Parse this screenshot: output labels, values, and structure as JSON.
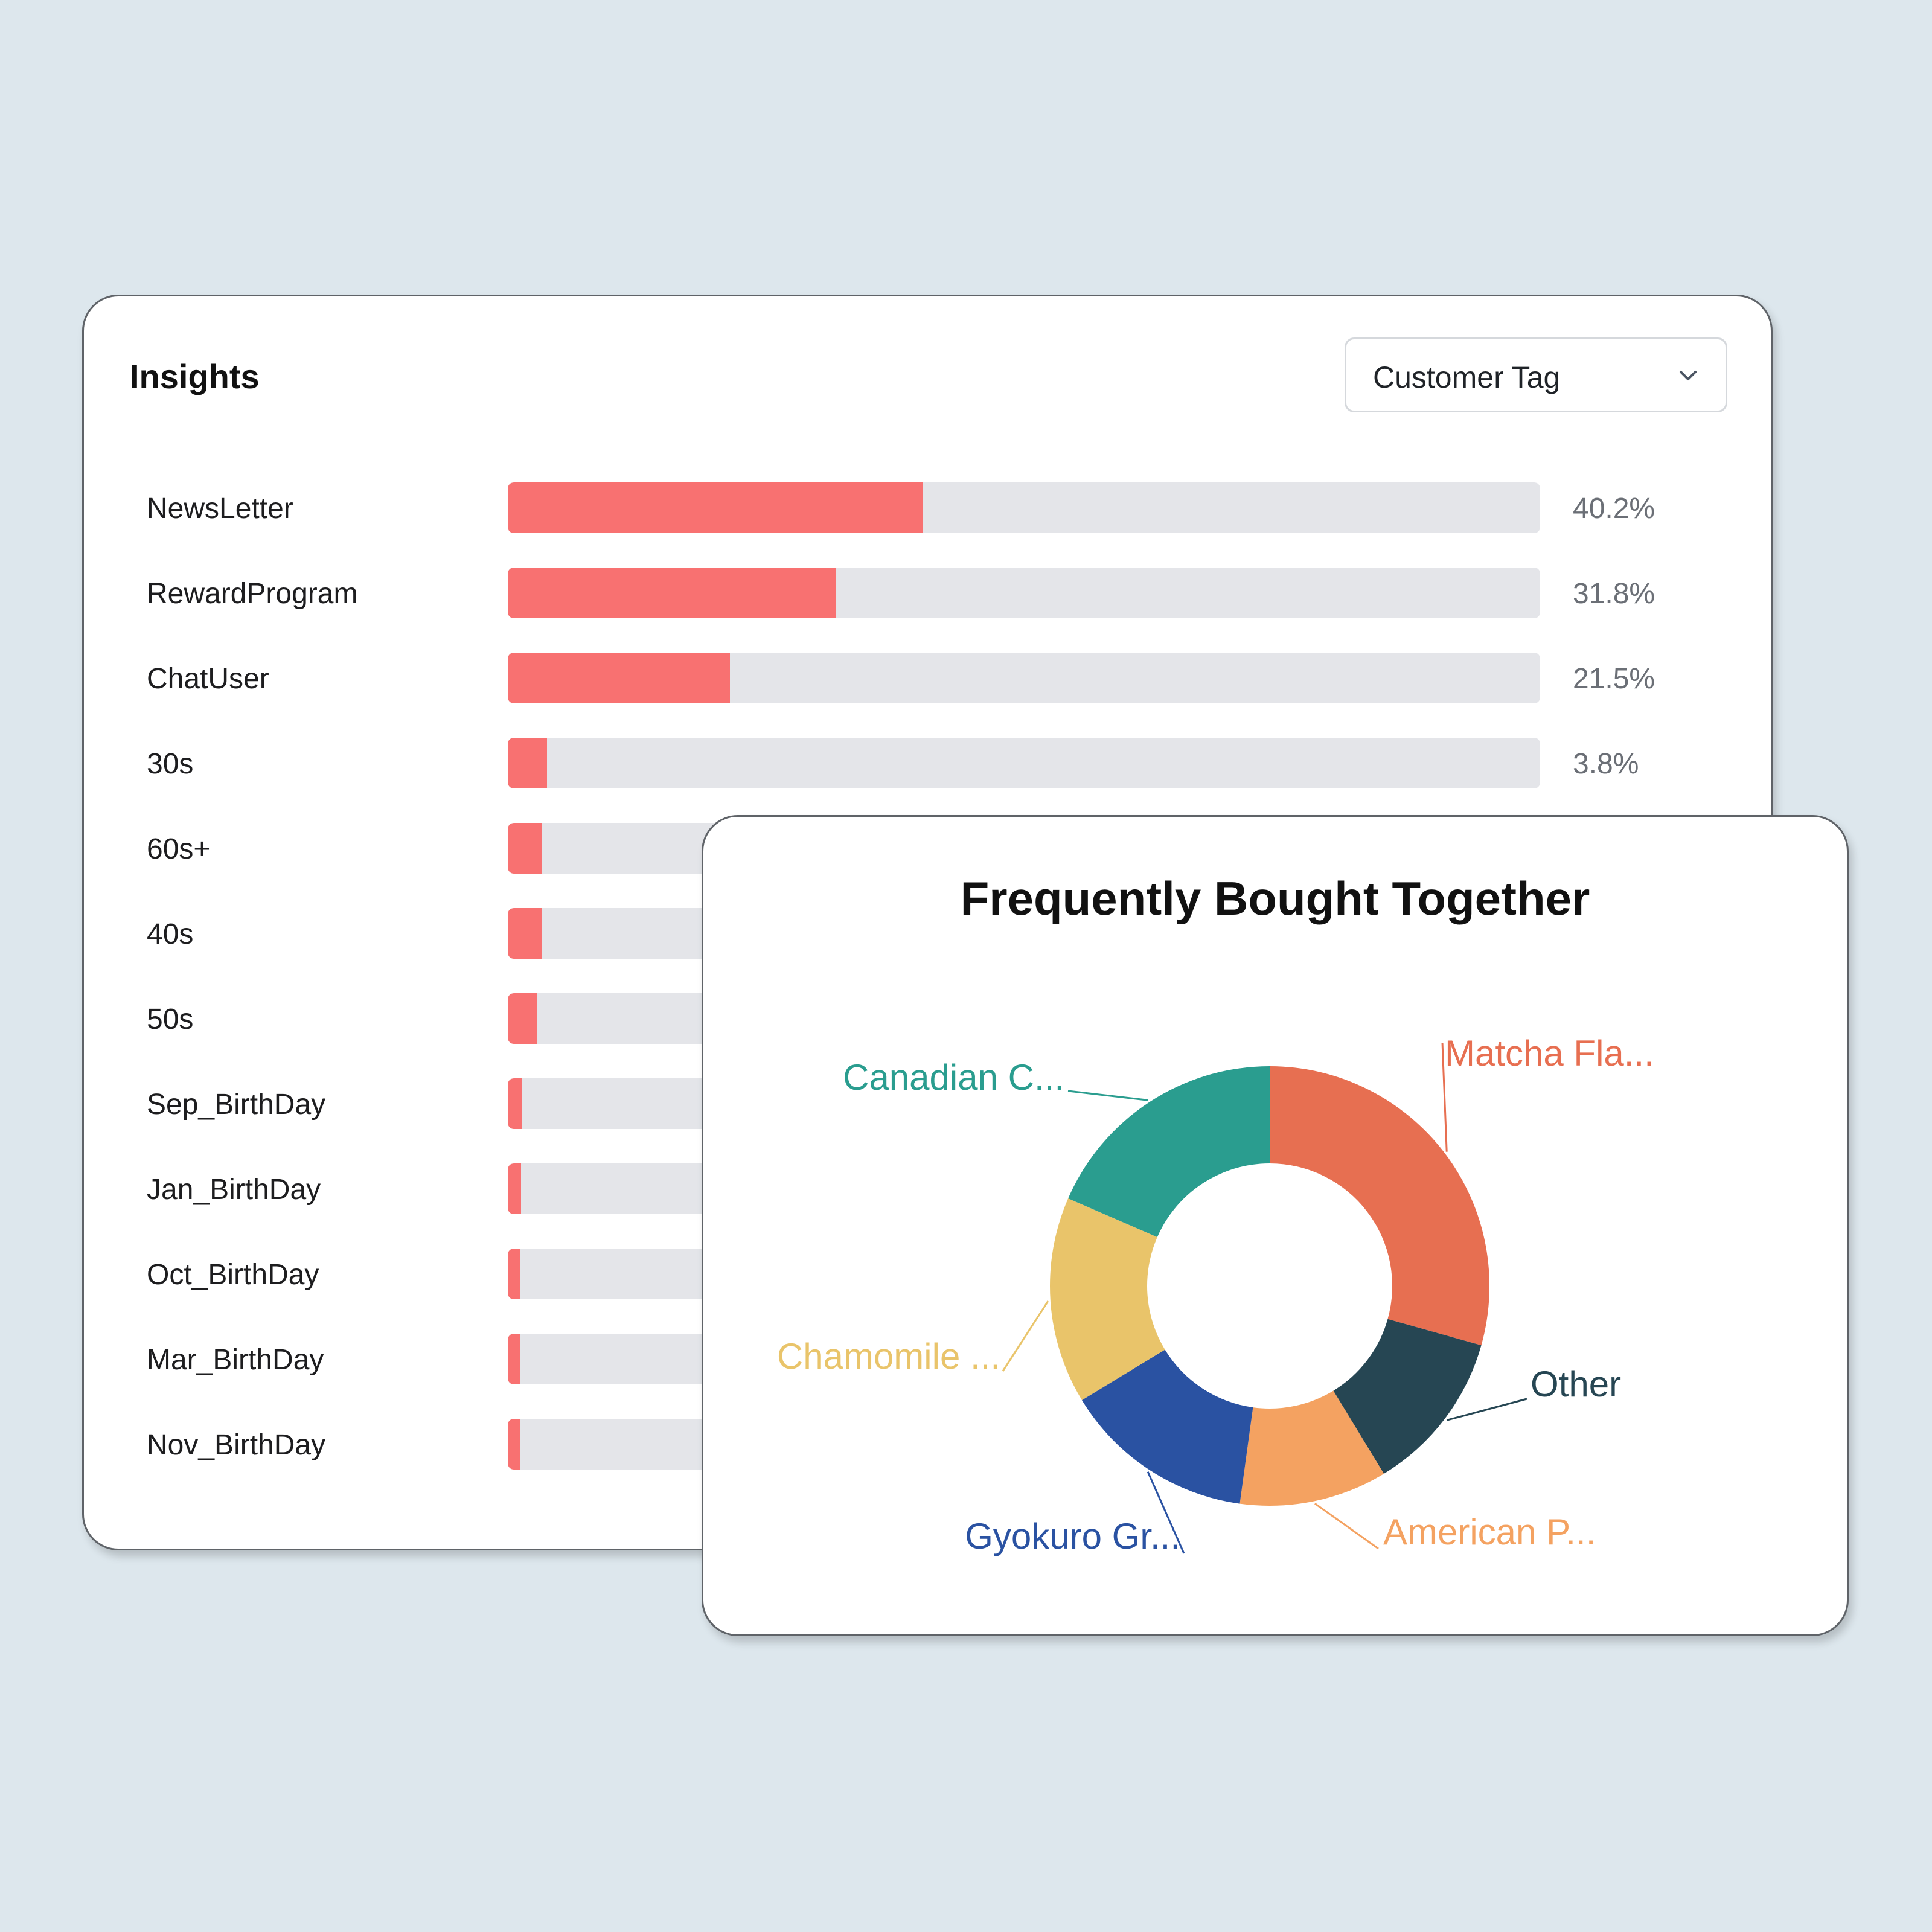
{
  "insights": {
    "title": "Insights",
    "filter": {
      "selected": "Customer Tag",
      "icon": "chevron-down-icon"
    },
    "bar_color": "#f87171",
    "track_color": "#e4e5e9",
    "rows": [
      {
        "label": "NewsLetter",
        "value": 40.2,
        "value_text": "40.2%"
      },
      {
        "label": "RewardProgram",
        "value": 31.8,
        "value_text": "31.8%"
      },
      {
        "label": "ChatUser",
        "value": 21.5,
        "value_text": "21.5%"
      },
      {
        "label": "30s",
        "value": 3.8,
        "value_text": "3.8%"
      },
      {
        "label": "60s+",
        "value": 3.3,
        "value_text": ""
      },
      {
        "label": "40s",
        "value": 3.3,
        "value_text": ""
      },
      {
        "label": "50s",
        "value": 2.8,
        "value_text": ""
      },
      {
        "label": "Sep_BirthDay",
        "value": 1.4,
        "value_text": ""
      },
      {
        "label": "Jan_BirthDay",
        "value": 1.3,
        "value_text": ""
      },
      {
        "label": "Oct_BirthDay",
        "value": 1.2,
        "value_text": ""
      },
      {
        "label": "Mar_BirthDay",
        "value": 1.2,
        "value_text": ""
      },
      {
        "label": "Nov_BirthDay",
        "value": 1.2,
        "value_text": ""
      }
    ]
  },
  "chart_data": {
    "type": "pie",
    "title": "Frequently Bought Together",
    "slices": [
      {
        "label": "Matcha Fla...",
        "value": 27,
        "color": "#e76f51"
      },
      {
        "label": "Other",
        "value": 11,
        "color": "#264653"
      },
      {
        "label": "American P...",
        "value": 10,
        "color": "#f4a261"
      },
      {
        "label": "Gyokuro Gr...",
        "value": 13,
        "color": "#2a52a2"
      },
      {
        "label": "Chamomile ...",
        "value": 14,
        "color": "#e9c46a"
      },
      {
        "label": "Canadian C...",
        "value": 17,
        "color": "#2a9d8f"
      }
    ]
  }
}
